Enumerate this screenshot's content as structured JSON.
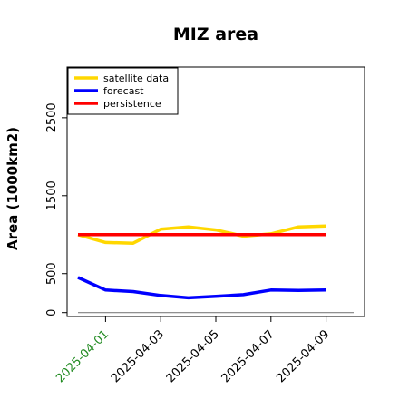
{
  "chart_data": {
    "type": "line",
    "title": "MIZ area",
    "ylabel": "Area (1000km2)",
    "xlabel": "",
    "x": [
      "2025-03-31",
      "2025-04-01",
      "2025-04-02",
      "2025-04-03",
      "2025-04-04",
      "2025-04-05",
      "2025-04-06",
      "2025-04-07",
      "2025-04-08",
      "2025-04-09",
      "2025-04-10"
    ],
    "x_tick_labels": [
      "2025-04-01",
      "2025-04-03",
      "2025-04-05",
      "2025-04-07",
      "2025-04-09"
    ],
    "x_tick_colors": [
      "#228b22",
      "#000000",
      "#000000",
      "#000000",
      "#000000"
    ],
    "y_ticks": [
      0,
      500,
      1500,
      2500
    ],
    "ylim": [
      -50,
      3150
    ],
    "grid": false,
    "legend_position": "top-left",
    "series": [
      {
        "name": "satellite data",
        "color": "#ffd700",
        "values": [
          1000,
          900,
          890,
          1070,
          1100,
          1060,
          980,
          1010,
          1100,
          1110,
          null
        ]
      },
      {
        "name": "forecast",
        "color": "#0000ff",
        "values": [
          450,
          290,
          270,
          220,
          190,
          210,
          230,
          290,
          285,
          290,
          null
        ]
      },
      {
        "name": "persistence",
        "color": "#ff0000",
        "values": [
          1000,
          1000,
          1000,
          1000,
          1000,
          1000,
          1000,
          1000,
          1000,
          1000,
          null
        ]
      }
    ],
    "baseline": {
      "color": "#808080",
      "value": 0
    }
  }
}
